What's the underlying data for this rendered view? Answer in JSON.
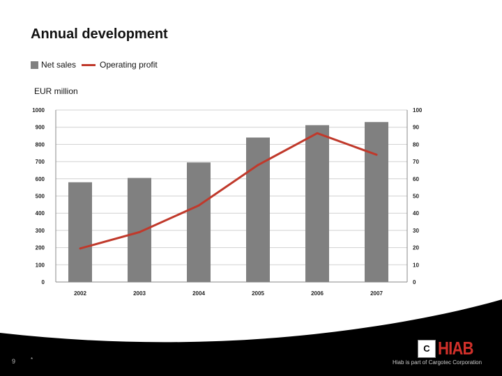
{
  "slide": {
    "title": "Annual development",
    "unit_label": "EUR million",
    "page_number": "9",
    "footer_mark": "*",
    "logo_text": "HIAB",
    "tagline": "Hiab is part of Cargotec Corporation"
  },
  "chart_data": {
    "type": "bar+line",
    "categories": [
      "2002",
      "2003",
      "2004",
      "2005",
      "2006",
      "2007"
    ],
    "series": [
      {
        "name": "Net sales",
        "type": "bar",
        "axis": "left",
        "values": [
          580,
          605,
          695,
          840,
          912,
          930
        ],
        "color": "#808080"
      },
      {
        "name": "Operating profit",
        "type": "line",
        "axis": "right",
        "values": [
          19.5,
          29,
          44.5,
          68,
          86.5,
          74
        ],
        "color": "#c0392b"
      }
    ],
    "ylim_left": [
      0,
      1000
    ],
    "yticks_left": [
      "0",
      "100",
      "200",
      "300",
      "400",
      "500",
      "600",
      "700",
      "800",
      "900",
      "1000"
    ],
    "ylim_right": [
      0,
      100
    ],
    "yticks_right": [
      "0",
      "10",
      "20",
      "30",
      "40",
      "50",
      "60",
      "70",
      "80",
      "90",
      "100"
    ],
    "grid": true,
    "legend": "top-left"
  }
}
